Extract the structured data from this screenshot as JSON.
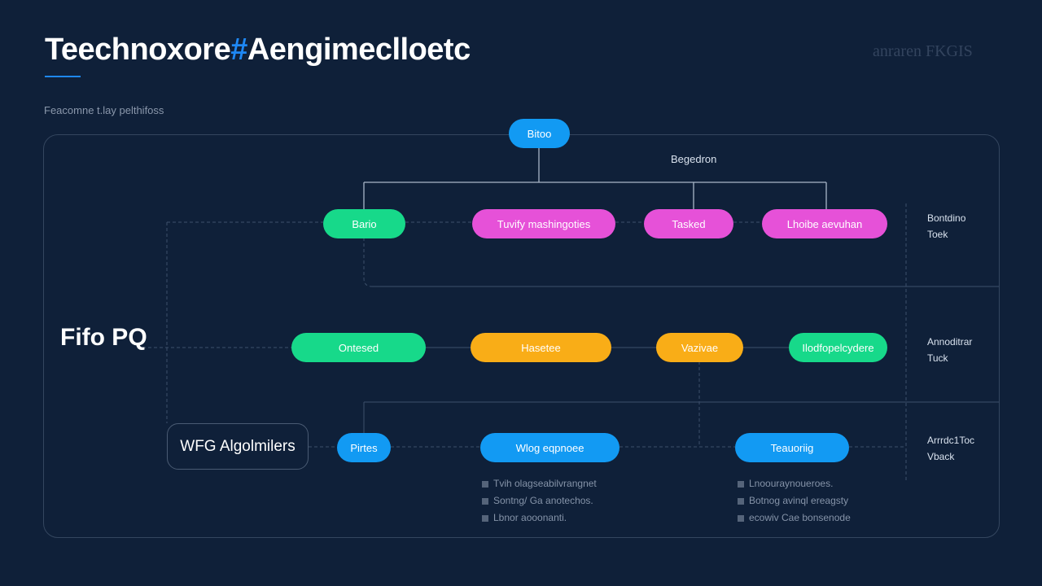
{
  "header": {
    "title_part1": "Teechnoxore",
    "title_accent": "#",
    "title_part2": "Aengimeclloetc",
    "subtitle": "Feacomne t.lay pelthifoss",
    "brand": "anraren FKGIS"
  },
  "colors": {
    "background": "#0f2039",
    "blue": "#129af3",
    "green": "#17d98a",
    "pink": "#e651d8",
    "orange": "#f9ad17",
    "accent": "#1e88f5"
  },
  "diagram": {
    "root": {
      "label": "Bitoo",
      "color": "blue"
    },
    "root_note": "Begedron",
    "row1": [
      {
        "label": "Bario",
        "color": "green"
      },
      {
        "label": "Tuvify mashingoties",
        "color": "pink"
      },
      {
        "label": "Tasked",
        "color": "pink"
      },
      {
        "label": "Lhoibe aevuhan",
        "color": "pink"
      }
    ],
    "row2": [
      {
        "label": "Ontesed",
        "color": "green"
      },
      {
        "label": "Hasetee",
        "color": "orange"
      },
      {
        "label": "Vazivae",
        "color": "orange"
      },
      {
        "label": "Ilodfopelcydere",
        "color": "green"
      }
    ],
    "row3": [
      {
        "label": "Pirtes",
        "color": "blue"
      },
      {
        "label": "Wlog eqpnoee",
        "color": "blue"
      },
      {
        "label": "Teauoriig",
        "color": "blue"
      }
    ],
    "left_label": "Fifo PQ",
    "left_box": "WFG Algolmilers",
    "side_labels": [
      {
        "line1": "Bontdino",
        "line2": "Toek"
      },
      {
        "line1": "Annoditrar",
        "line2": "Tuck"
      },
      {
        "line1": "Arrrdc1Toc",
        "line2": "Vback"
      }
    ],
    "bullets_left": [
      "Tvih olagseabilvrangnet",
      "Sontng/ Ga anotechos.",
      "Lbnor aooonanti."
    ],
    "bullets_right": [
      "Lnoouraynoueroes.",
      "Botnog avinql ereagsty",
      "ecowiv Cae bonsenode"
    ]
  }
}
